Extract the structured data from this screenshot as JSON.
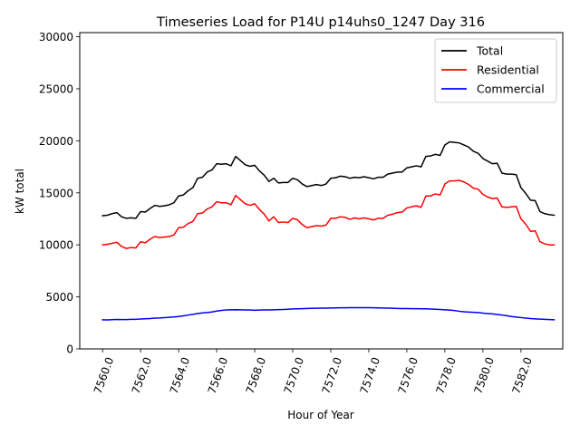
{
  "chart_data": {
    "type": "line",
    "title": "Timeseries Load for P14U p14uhs0_1247  Day 316",
    "xlabel": "Hour of Year",
    "ylabel": "kW total",
    "xlim": [
      7558.8,
      7584.2
    ],
    "ylim": [
      0,
      30400
    ],
    "xticks": [
      7560,
      7562,
      7564,
      7566,
      7568,
      7570,
      7572,
      7574,
      7576,
      7578,
      7580,
      7582
    ],
    "xtick_labels": [
      "7560.0",
      "7562.0",
      "7564.0",
      "7566.0",
      "7568.0",
      "7570.0",
      "7572.0",
      "7574.0",
      "7576.0",
      "7578.0",
      "7580.0",
      "7582.0"
    ],
    "yticks": [
      0,
      5000,
      10000,
      15000,
      20000,
      25000,
      30000
    ],
    "ytick_labels": [
      "0",
      "5000",
      "10000",
      "15000",
      "20000",
      "25000",
      "30000"
    ],
    "legend_position": "top-right",
    "x_start": 7560,
    "x_step": 0.25,
    "series": [
      {
        "name": "Total",
        "color": "#000000",
        "values": [
          12800,
          12850,
          13000,
          13100,
          12700,
          12550,
          12600,
          12550,
          13200,
          13150,
          13500,
          13800,
          13700,
          13750,
          13850,
          14050,
          14700,
          14800,
          15200,
          15500,
          16400,
          16500,
          17000,
          17200,
          17800,
          17750,
          17800,
          17600,
          18500,
          18100,
          17700,
          17550,
          17650,
          17100,
          16700,
          16100,
          16400,
          15950,
          16000,
          16000,
          16400,
          16250,
          15850,
          15600,
          15700,
          15800,
          15700,
          15850,
          16400,
          16450,
          16600,
          16550,
          16400,
          16500,
          16450,
          16550,
          16450,
          16350,
          16500,
          16500,
          16800,
          16900,
          17000,
          17000,
          17400,
          17500,
          17600,
          17500,
          18500,
          18550,
          18700,
          18600,
          19600,
          19900,
          19850,
          19800,
          19600,
          19400,
          19000,
          18800,
          18300,
          18050,
          17800,
          17850,
          16900,
          16800,
          16800,
          16750,
          15500,
          14950,
          14300,
          14250,
          13200,
          13000,
          12900,
          12850
        ]
      },
      {
        "name": "Residential",
        "color": "#ff0000",
        "values": [
          10000,
          10050,
          10150,
          10250,
          9850,
          9650,
          9750,
          9700,
          10300,
          10200,
          10550,
          10800,
          10700,
          10750,
          10800,
          10950,
          11650,
          11700,
          12050,
          12250,
          13000,
          13050,
          13450,
          13650,
          14150,
          14050,
          14050,
          13850,
          14750,
          14350,
          13950,
          13800,
          13950,
          13400,
          12950,
          12300,
          12700,
          12150,
          12200,
          12150,
          12550,
          12400,
          11950,
          11650,
          11750,
          11850,
          11800,
          11900,
          12550,
          12550,
          12700,
          12650,
          12450,
          12600,
          12500,
          12600,
          12500,
          12400,
          12550,
          12550,
          12850,
          12950,
          13100,
          13150,
          13550,
          13650,
          13750,
          13600,
          14700,
          14700,
          14900,
          14800,
          15850,
          16150,
          16150,
          16200,
          16050,
          15800,
          15450,
          15350,
          14850,
          14600,
          14450,
          14500,
          13650,
          13600,
          13650,
          13700,
          12500,
          12000,
          11300,
          11350,
          10300,
          10100,
          10000,
          10000
        ]
      },
      {
        "name": "Commercial",
        "color": "#0000ff",
        "values": [
          2800,
          2790,
          2810,
          2830,
          2820,
          2820,
          2840,
          2840,
          2880,
          2900,
          2920,
          2960,
          2970,
          3000,
          3040,
          3070,
          3110,
          3180,
          3250,
          3320,
          3400,
          3460,
          3500,
          3550,
          3640,
          3700,
          3740,
          3760,
          3770,
          3760,
          3750,
          3740,
          3710,
          3730,
          3740,
          3750,
          3760,
          3780,
          3790,
          3810,
          3840,
          3860,
          3870,
          3890,
          3900,
          3910,
          3920,
          3920,
          3930,
          3940,
          3950,
          3950,
          3960,
          3960,
          3960,
          3960,
          3960,
          3950,
          3940,
          3930,
          3920,
          3910,
          3890,
          3880,
          3880,
          3870,
          3870,
          3860,
          3850,
          3830,
          3810,
          3790,
          3760,
          3730,
          3690,
          3620,
          3570,
          3540,
          3520,
          3490,
          3440,
          3400,
          3360,
          3310,
          3260,
          3190,
          3110,
          3060,
          3010,
          2960,
          2920,
          2890,
          2860,
          2840,
          2820,
          2800
        ]
      }
    ]
  }
}
